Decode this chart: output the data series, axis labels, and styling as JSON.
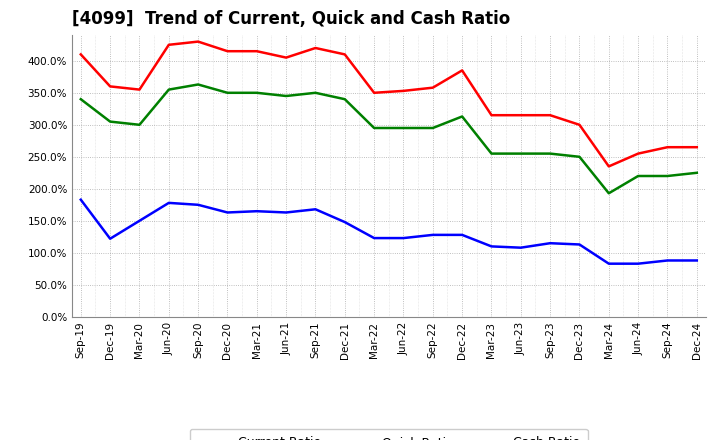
{
  "title": "[4099]  Trend of Current, Quick and Cash Ratio",
  "x_labels": [
    "Sep-19",
    "Dec-19",
    "Mar-20",
    "Jun-20",
    "Sep-20",
    "Dec-20",
    "Mar-21",
    "Jun-21",
    "Sep-21",
    "Dec-21",
    "Mar-22",
    "Jun-22",
    "Sep-22",
    "Dec-22",
    "Mar-23",
    "Jun-23",
    "Sep-23",
    "Dec-23",
    "Mar-24",
    "Jun-24",
    "Sep-24",
    "Dec-24"
  ],
  "current_ratio": [
    410,
    360,
    355,
    425,
    430,
    415,
    415,
    405,
    420,
    410,
    350,
    353,
    358,
    385,
    315,
    315,
    315,
    300,
    235,
    255,
    265,
    265
  ],
  "quick_ratio": [
    340,
    305,
    300,
    355,
    363,
    350,
    350,
    345,
    350,
    340,
    295,
    295,
    295,
    313,
    255,
    255,
    255,
    250,
    193,
    220,
    220,
    225
  ],
  "cash_ratio": [
    183,
    122,
    150,
    178,
    175,
    163,
    165,
    163,
    168,
    148,
    123,
    123,
    128,
    128,
    110,
    108,
    115,
    113,
    83,
    83,
    88,
    88
  ],
  "current_color": "#FF0000",
  "quick_color": "#008000",
  "cash_color": "#0000FF",
  "ylim": [
    0,
    440
  ],
  "yticks": [
    0,
    50,
    100,
    150,
    200,
    250,
    300,
    350,
    400
  ],
  "background_color": "#FFFFFF",
  "plot_bg_color": "#FFFFFF",
  "grid_color": "#AAAAAA",
  "title_fontsize": 12,
  "tick_fontsize": 7.5,
  "legend_fontsize": 9,
  "linewidth": 1.8
}
